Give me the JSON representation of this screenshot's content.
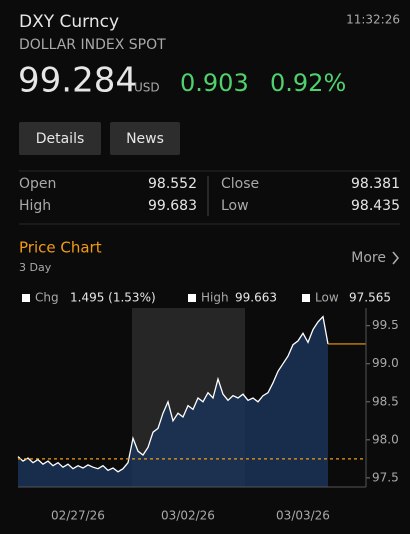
{
  "header": {
    "title": "DXY Curncy",
    "subtitle": "DOLLAR INDEX SPOT",
    "time": "11:32:26",
    "price": "99.284",
    "currency": "USD",
    "change": "0.903",
    "change_pct": "0.92%"
  },
  "buttons": [
    "Details",
    "News"
  ],
  "stats": [
    [
      "Open",
      "98.552",
      "Close",
      "98.381"
    ],
    [
      "High",
      "99.683",
      "Low",
      "98.435"
    ]
  ],
  "price_chart": {
    "title": "Price Chart",
    "period": "3 Day",
    "more": "More",
    "legend": [
      {
        "label": "Chg",
        "value": "1.495 (1.53%)"
      },
      {
        "label": "High",
        "value": "99.663"
      },
      {
        "label": "Low",
        "value": "97.565"
      }
    ]
  },
  "chart_data": {
    "type": "area",
    "categories": [
      null,
      null,
      null,
      null,
      null,
      null,
      null,
      null,
      null,
      null,
      null,
      null,
      "02/27/26",
      null,
      null,
      null,
      null,
      null,
      null,
      null,
      null,
      null,
      null,
      null,
      null,
      null,
      null,
      null,
      null,
      null,
      null,
      null,
      null,
      null,
      "03/02/26",
      null,
      null,
      null,
      null,
      null,
      null,
      null,
      null,
      null,
      null,
      null,
      null,
      null,
      null,
      null,
      null,
      null,
      null,
      null,
      null,
      null,
      null,
      "03/03/26",
      null,
      null,
      null,
      null,
      null
    ],
    "values": [
      97.78,
      97.72,
      97.76,
      97.7,
      97.74,
      97.68,
      97.72,
      97.66,
      97.7,
      97.64,
      97.68,
      97.62,
      97.66,
      97.63,
      97.67,
      97.64,
      97.62,
      97.66,
      97.6,
      97.63,
      97.58,
      97.62,
      97.7,
      98.02,
      97.85,
      97.8,
      97.9,
      98.1,
      98.15,
      98.35,
      98.5,
      98.25,
      98.35,
      98.3,
      98.45,
      98.4,
      98.55,
      98.5,
      98.62,
      98.55,
      98.8,
      98.6,
      98.52,
      98.58,
      98.55,
      98.6,
      98.52,
      98.55,
      98.5,
      98.58,
      98.62,
      98.75,
      98.9,
      99.0,
      99.1,
      99.25,
      99.3,
      99.4,
      99.28,
      99.45,
      99.55,
      99.62,
      99.26
    ],
    "color": "#ffffff",
    "fill": "#1b3358",
    "ylim": [
      97.38,
      99.68
    ],
    "yticks": [
      97.5,
      {
        "value": 98,
        "label": "98.0"
      },
      98.5,
      {
        "value": 99,
        "label": "99.0"
      },
      99.5
    ],
    "grid": false,
    "reference_line": 97.75,
    "reference_color": "#f39c12"
  }
}
